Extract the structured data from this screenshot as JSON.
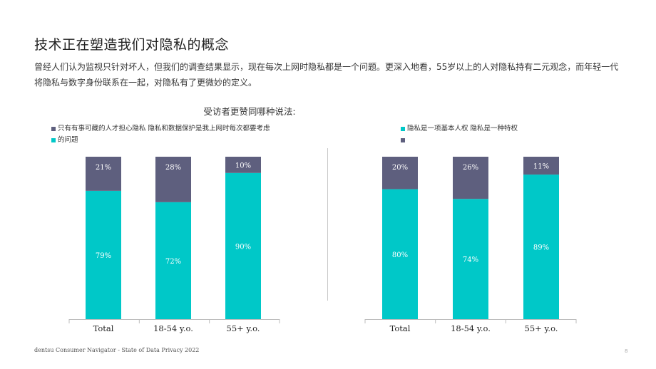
{
  "header": {
    "title": "技术正在塑造我们对隐私的概念",
    "subtitle": "曾经人们认为监视只针对坏人，但我们的调查结果显示，现在每次上网时隐私都是一个问题。更深入地看，55岁以上的人对隐私持有二元观念，而年轻一代将隐私与数字身份联系在一起，对隐私有了更微妙的定义。",
    "question": "受访者更赞同哪种说法:"
  },
  "colors": {
    "teal": "#00c8c8",
    "slate": "#5e5f7e"
  },
  "legends": {
    "left": {
      "slate_label": "只有有事可藏的人才担心隐私 隐私和数据保护是我上网时每次都要考虑",
      "teal_label": "的问题"
    },
    "right": {
      "teal_label": "隐私是一项基本人权 隐私是一种特权",
      "slate_label": ""
    }
  },
  "chart_data": [
    {
      "type": "bar",
      "stacked": true,
      "categories": [
        "Total",
        "18-54 y.o.",
        "55+ y.o."
      ],
      "series": [
        {
          "name": "的问题",
          "color": "teal",
          "values": [
            79,
            72,
            90
          ]
        },
        {
          "name": "只有有事可藏的人才担心隐私 隐私和数据保护是我上网时每次都要考虑",
          "color": "slate",
          "values": [
            21,
            28,
            10
          ]
        }
      ],
      "ylim": [
        0,
        100
      ]
    },
    {
      "type": "bar",
      "stacked": true,
      "categories": [
        "Total",
        "18-54 y.o.",
        "55+ y.o."
      ],
      "series": [
        {
          "name": "隐私是一项基本人权 隐私是一种特权",
          "color": "teal",
          "values": [
            80,
            74,
            89
          ]
        },
        {
          "name": "",
          "color": "slate",
          "values": [
            20,
            26,
            11
          ]
        }
      ],
      "ylim": [
        0,
        100
      ]
    }
  ],
  "footer": {
    "source": "dentsu Consumer Navigator - State of Data Privacy 2022",
    "page": "8"
  }
}
